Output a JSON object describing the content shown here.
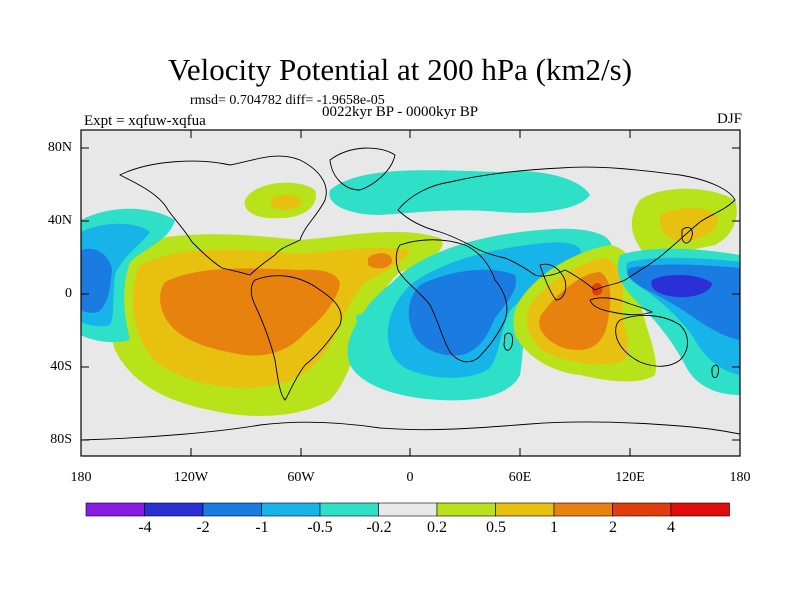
{
  "title": "Velocity Potential at 200 hPa (km2/s)",
  "stats": "rmsd= 0.704782 diff= -1.9658e-05",
  "expt": "Expt = xqfuw-xqfua",
  "period": "0022kyr BP - 0000kyr BP",
  "season": "DJF",
  "y_axis": {
    "ticks": [
      "80N",
      "40N",
      "0",
      "40S",
      "80S"
    ]
  },
  "x_axis": {
    "ticks": [
      "180",
      "120W",
      "60W",
      "0",
      "60E",
      "120E",
      "180"
    ]
  },
  "colorbar": {
    "labels": [
      "-4",
      "-2",
      "-1",
      "-0.5",
      "-0.2",
      "0.2",
      "0.5",
      "1",
      "2",
      "4"
    ],
    "colors": [
      "#8a1ae6",
      "#2b2fd6",
      "#1a7be0",
      "#16b4e8",
      "#2ee0c8",
      "#e8e8e8",
      "#b8e31a",
      "#e8c010",
      "#e8820f",
      "#e03c0c",
      "#e00b0b"
    ]
  },
  "colors": {
    "background": "#e8e8e8",
    "darkBlue": "#1a7be0",
    "mediumBlue": "#16b4e8",
    "cyan": "#2ee0c8",
    "lime": "#b8e31a",
    "yellow": "#e8c010",
    "orange": "#e8820f",
    "deepBlue": "#2b2fd6"
  }
}
